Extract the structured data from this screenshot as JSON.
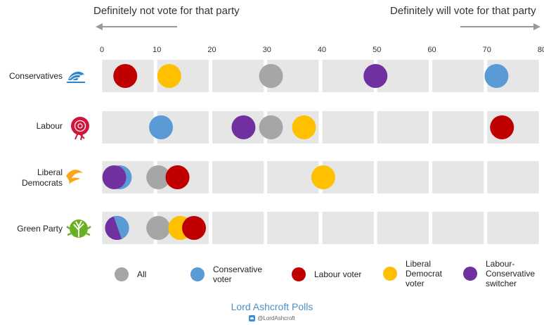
{
  "header": {
    "left": "Definitely not vote for that party",
    "right": "Definitely will vote for that party"
  },
  "colors": {
    "all": "#a6a6a6",
    "conservative": "#5b9bd5",
    "labour": "#c00000",
    "libdem": "#ffc000",
    "switcher": "#7030a0",
    "track": "#e6e6e6"
  },
  "icons": {
    "conservatives": "tree-logo-icon",
    "labour": "rose-logo-icon",
    "libdem": "bird-logo-icon",
    "green": "globe-tree-logo-icon"
  },
  "chart_data": {
    "type": "scatter",
    "x_ticks": [
      "0",
      "10",
      "20",
      "30",
      "40",
      "50",
      "60",
      "70",
      "80"
    ],
    "xlim": [
      0,
      80
    ],
    "parties": [
      "Conservatives",
      "Labour",
      "Liberal\nDemocrats",
      "Green Party"
    ],
    "series": [
      {
        "name": "All",
        "values": [
          31,
          31,
          10.5,
          10.5
        ]
      },
      {
        "name": "Conservative\nvoter",
        "values": [
          72,
          11,
          3.5,
          3
        ]
      },
      {
        "name": "Labour voter",
        "values": [
          4.5,
          73,
          14,
          17
        ]
      },
      {
        "name": "Liberal\nDemocrat\nvoter",
        "values": [
          12.5,
          37,
          40.5,
          14.5
        ]
      },
      {
        "name": "Labour-\nConservative\nswitcher",
        "values": [
          50,
          26,
          2.5,
          3
        ]
      }
    ]
  },
  "footer": {
    "brand": "Lord Ashcroft Polls",
    "handle": "@LordAshcroft"
  }
}
